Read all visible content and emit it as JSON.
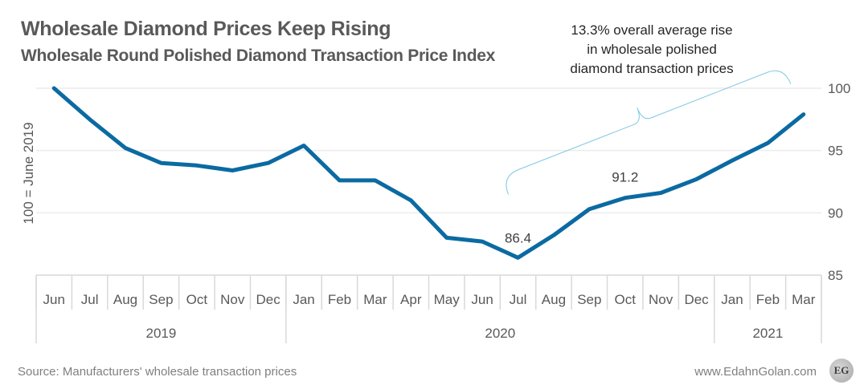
{
  "chart_data": {
    "type": "line",
    "title": "Wholesale Diamond Prices Keep Rising",
    "subtitle": "Wholesale Round Polished Diamond Transaction Price Index",
    "ylabel": "100 = June 2019",
    "xlabel": "",
    "ylim": [
      85,
      100
    ],
    "yticks": [
      100,
      95,
      90,
      85
    ],
    "y_axis_side": "right",
    "grid": true,
    "line_color": "#0b6aa2",
    "bracket_color": "#7ec8e3",
    "categories": [
      "Jun",
      "Jul",
      "Aug",
      "Sep",
      "Oct",
      "Nov",
      "Dec",
      "Jan",
      "Feb",
      "Mar",
      "Apr",
      "May",
      "Jun",
      "Jul",
      "Aug",
      "Sep",
      "Oct",
      "Nov",
      "Dec",
      "Jan",
      "Feb",
      "Mar"
    ],
    "year_groups": [
      {
        "label": "2019",
        "count": 7
      },
      {
        "label": "2020",
        "count": 12
      },
      {
        "label": "2021",
        "count": 3
      }
    ],
    "series": [
      {
        "name": "Price Index",
        "values": [
          100.0,
          97.5,
          95.2,
          94.0,
          93.8,
          93.4,
          94.0,
          95.4,
          92.6,
          92.6,
          91.0,
          88.0,
          87.7,
          86.4,
          88.2,
          90.3,
          91.2,
          91.6,
          92.7,
          94.2,
          95.6,
          97.9
        ]
      }
    ],
    "data_labels": [
      {
        "index": 13,
        "text": "86.4"
      },
      {
        "index": 16,
        "text": "91.2"
      }
    ],
    "annotation": {
      "lines": [
        "13.3% overall average rise",
        "in wholesale polished",
        "diamond transaction prices"
      ],
      "from_index": 13,
      "to_index": 21
    },
    "legend": "none"
  },
  "footer": {
    "source": "Source: Manufacturers' wholesale transaction prices",
    "website": "www.EdahnGolan.com",
    "logo_text": "EG"
  }
}
